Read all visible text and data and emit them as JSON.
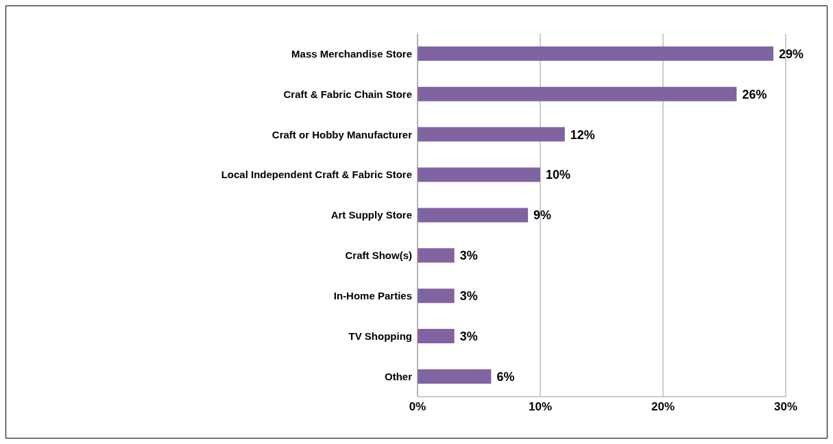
{
  "chart_data": {
    "type": "bar",
    "orientation": "horizontal",
    "categories": [
      "Mass Merchandise Store",
      "Craft & Fabric Chain Store",
      "Craft or Hobby Manufacturer",
      "Local Independent Craft & Fabric Store",
      "Art Supply Store",
      "Craft Show(s)",
      "In-Home Parties",
      "TV Shopping",
      "Other"
    ],
    "values": [
      29,
      26,
      12,
      10,
      9,
      3,
      3,
      3,
      6
    ],
    "value_labels": [
      "29%",
      "26%",
      "12%",
      "10%",
      "9%",
      "3%",
      "3%",
      "3%",
      "6%"
    ],
    "color": "#8064a2",
    "xlim": [
      0,
      30
    ],
    "xticks": [
      {
        "value": 0,
        "label": "0%"
      },
      {
        "value": 10,
        "label": "10%"
      },
      {
        "value": 20,
        "label": "20%"
      },
      {
        "value": 30,
        "label": "30%"
      }
    ],
    "grid": "x"
  }
}
